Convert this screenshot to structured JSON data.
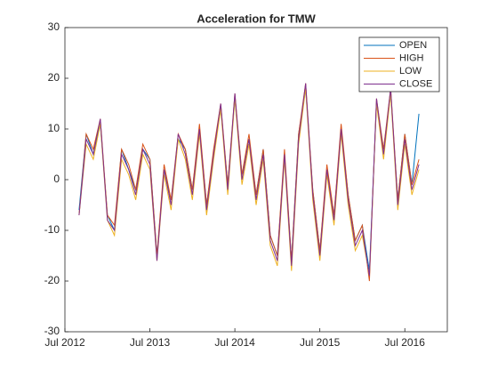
{
  "chart_data": {
    "type": "line",
    "title": "Acceleration for TMW",
    "x": [
      "2012-09",
      "2012-10",
      "2012-11",
      "2012-12",
      "2013-01",
      "2013-02",
      "2013-03",
      "2013-04",
      "2013-05",
      "2013-06",
      "2013-07",
      "2013-08",
      "2013-09",
      "2013-10",
      "2013-11",
      "2013-12",
      "2014-01",
      "2014-02",
      "2014-03",
      "2014-04",
      "2014-05",
      "2014-06",
      "2014-07",
      "2014-08",
      "2014-09",
      "2014-10",
      "2014-11",
      "2014-12",
      "2015-01",
      "2015-02",
      "2015-03",
      "2015-04",
      "2015-05",
      "2015-06",
      "2015-07",
      "2015-08",
      "2015-09",
      "2015-10",
      "2015-11",
      "2015-12",
      "2016-01",
      "2016-02",
      "2016-03",
      "2016-04",
      "2016-05",
      "2016-06",
      "2016-07",
      "2016-08",
      "2016-09"
    ],
    "series": [
      {
        "name": "OPEN",
        "color": "#0072BD",
        "values": [
          -6,
          9,
          5,
          11,
          -7,
          -10,
          6,
          2,
          -2,
          6,
          4,
          -15,
          2,
          -4,
          8,
          6,
          -2,
          10,
          -5,
          5,
          14,
          -1,
          16,
          1,
          8,
          -3,
          6,
          -11,
          -15,
          5,
          -16,
          9,
          18,
          -2,
          -14,
          2,
          -7,
          10,
          -3,
          -12,
          -9,
          -18,
          15,
          6,
          17,
          -4,
          9,
          -1,
          13
        ]
      },
      {
        "name": "HIGH",
        "color": "#D95319",
        "values": [
          -7,
          9,
          6,
          12,
          -7,
          -9,
          6,
          3,
          -2,
          7,
          4,
          -15,
          3,
          -4,
          9,
          6,
          -2,
          11,
          -5,
          6,
          15,
          -1,
          17,
          1,
          9,
          -3,
          6,
          -11,
          -15,
          6,
          -16,
          9,
          19,
          -2,
          -14,
          3,
          -7,
          11,
          -3,
          -12,
          -9,
          -20,
          16,
          6,
          18,
          -4,
          9,
          -1,
          4
        ]
      },
      {
        "name": "LOW",
        "color": "#EDB120",
        "values": [
          -7,
          7,
          4,
          11,
          -8,
          -11,
          4,
          1,
          -4,
          5,
          2,
          -16,
          1,
          -6,
          8,
          4,
          -4,
          9,
          -7,
          4,
          14,
          -3,
          16,
          -1,
          7,
          -5,
          4,
          -13,
          -17,
          4,
          -18,
          7,
          18,
          -4,
          -16,
          1,
          -9,
          9,
          -5,
          -14,
          -11,
          -19,
          15,
          4,
          17,
          -6,
          7,
          -3,
          2
        ]
      },
      {
        "name": "CLOSE",
        "color": "#7E2F8E",
        "values": [
          -7,
          8,
          5,
          12,
          -8,
          -10,
          5,
          2,
          -3,
          6,
          3,
          -16,
          2,
          -5,
          9,
          5,
          -3,
          10,
          -6,
          5,
          15,
          -2,
          17,
          0,
          8,
          -4,
          5,
          -12,
          -16,
          5,
          -17,
          8,
          19,
          -3,
          -15,
          2,
          -8,
          10,
          -4,
          -13,
          -10,
          -19,
          16,
          5,
          18,
          -5,
          8,
          -2,
          3
        ]
      }
    ],
    "xlim": [
      "2012-07",
      "2017-01"
    ],
    "xticks": [
      {
        "value": "2012-07",
        "label": "Jul 2012"
      },
      {
        "value": "2013-07",
        "label": "Jul 2013"
      },
      {
        "value": "2014-07",
        "label": "Jul 2014"
      },
      {
        "value": "2015-07",
        "label": "Jul 2015"
      },
      {
        "value": "2016-07",
        "label": "Jul 2016"
      }
    ],
    "ylim": [
      -30,
      30
    ],
    "yticks": [
      -30,
      -20,
      -10,
      0,
      10,
      20,
      30
    ],
    "legend": "upper right"
  }
}
